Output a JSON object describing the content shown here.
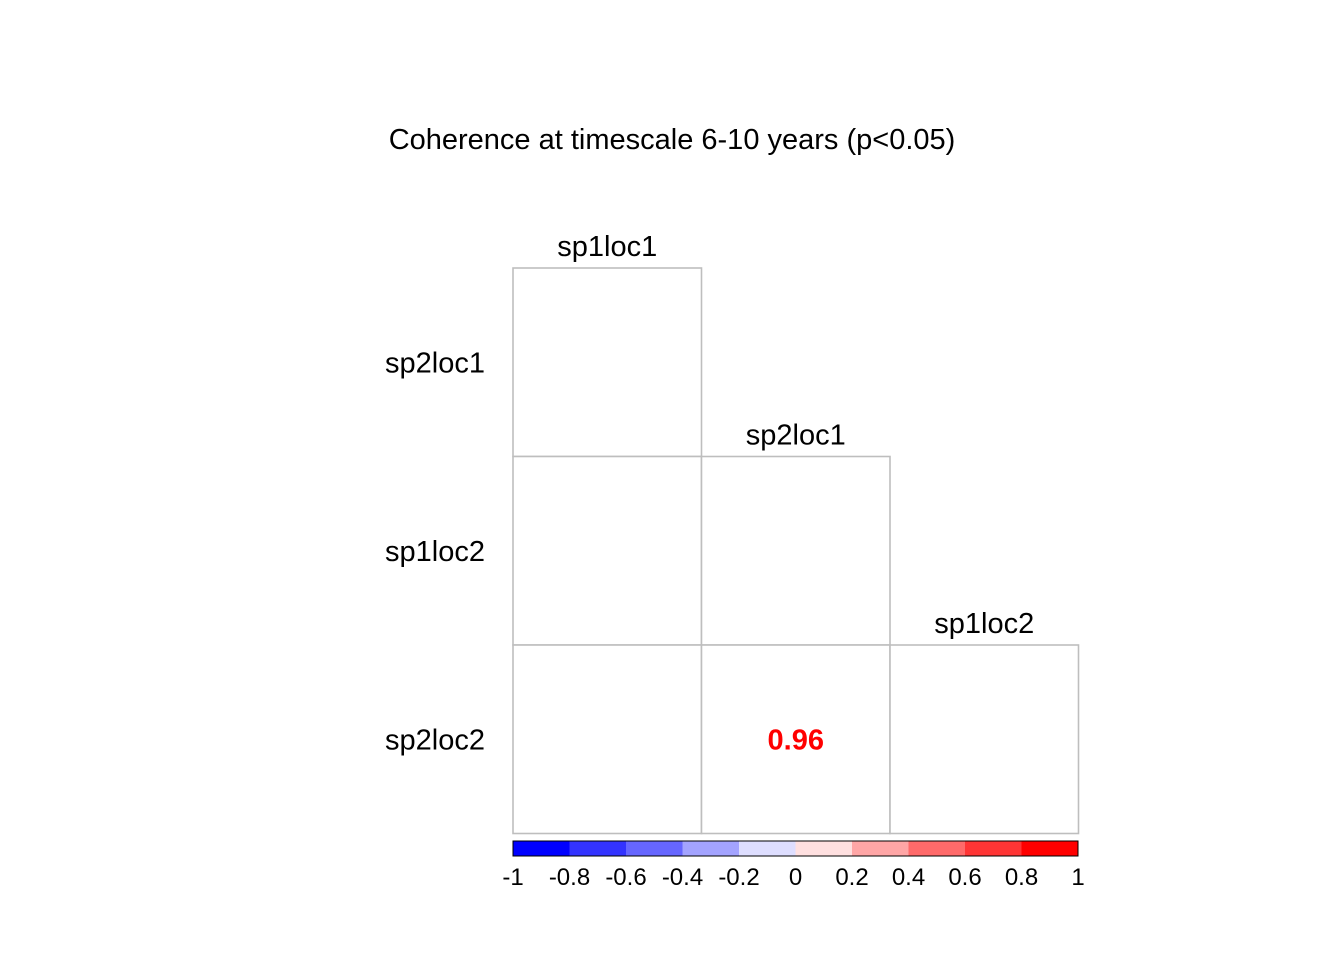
{
  "chart_data": {
    "type": "heatmap",
    "title": "Coherence at timescale 6-10 years (p<0.05)",
    "layout": "lower-triangle",
    "column_labels": [
      "sp1loc1",
      "sp2loc1",
      "sp1loc2"
    ],
    "row_labels": [
      "sp2loc1",
      "sp1loc2",
      "sp2loc2"
    ],
    "cells": [
      {
        "row": 0,
        "col": 0,
        "value": null
      },
      {
        "row": 1,
        "col": 0,
        "value": null
      },
      {
        "row": 1,
        "col": 1,
        "value": null
      },
      {
        "row": 2,
        "col": 0,
        "value": null
      },
      {
        "row": 2,
        "col": 1,
        "value": 0.96,
        "label": "0.96"
      },
      {
        "row": 2,
        "col": 2,
        "value": null
      }
    ],
    "colorbar": {
      "range": [
        -1,
        1
      ],
      "tick_labels": [
        "-1",
        "-0.8",
        "-0.6",
        "-0.4",
        "-0.2",
        "0",
        "0.2",
        "0.4",
        "0.6",
        "0.8",
        "1"
      ],
      "colors": [
        "#0000ff",
        "#3333ff",
        "#6666ff",
        "#a3a3ff",
        "#dedeff",
        "#ffe0e0",
        "#ffa6a6",
        "#ff6a6a",
        "#ff3535",
        "#ff0000"
      ]
    },
    "value_label_color": "#ff0000",
    "grid_color": "#bebebe"
  }
}
